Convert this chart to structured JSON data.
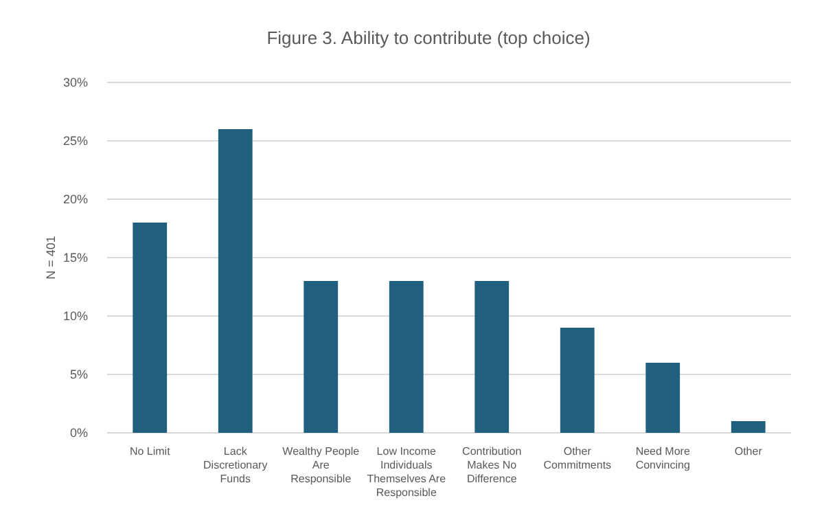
{
  "chart_data": {
    "type": "bar",
    "title": "Figure 3. Ability to contribute (top choice)",
    "ylabel": "N = 401",
    "categories": [
      "No Limit",
      "Lack Discretionary Funds",
      "Wealthy People Are Responsible",
      "Low Income Individuals Themselves Are Responsible",
      "Contribution Makes No Difference",
      "Other Commitments",
      "Need More Convincing",
      "Other"
    ],
    "values": [
      18,
      26,
      13,
      13,
      13,
      9,
      6,
      1
    ],
    "color": "#215f7f",
    "ylim": [
      0,
      30
    ],
    "yticks": [
      {
        "value": 0,
        "label": "0%"
      },
      {
        "value": 5,
        "label": "5%"
      },
      {
        "value": 10,
        "label": "10%"
      },
      {
        "value": 15,
        "label": "15%"
      },
      {
        "value": 20,
        "label": "20%"
      },
      {
        "value": 25,
        "label": "25%"
      },
      {
        "value": 30,
        "label": "30%"
      }
    ],
    "grid": "y"
  }
}
